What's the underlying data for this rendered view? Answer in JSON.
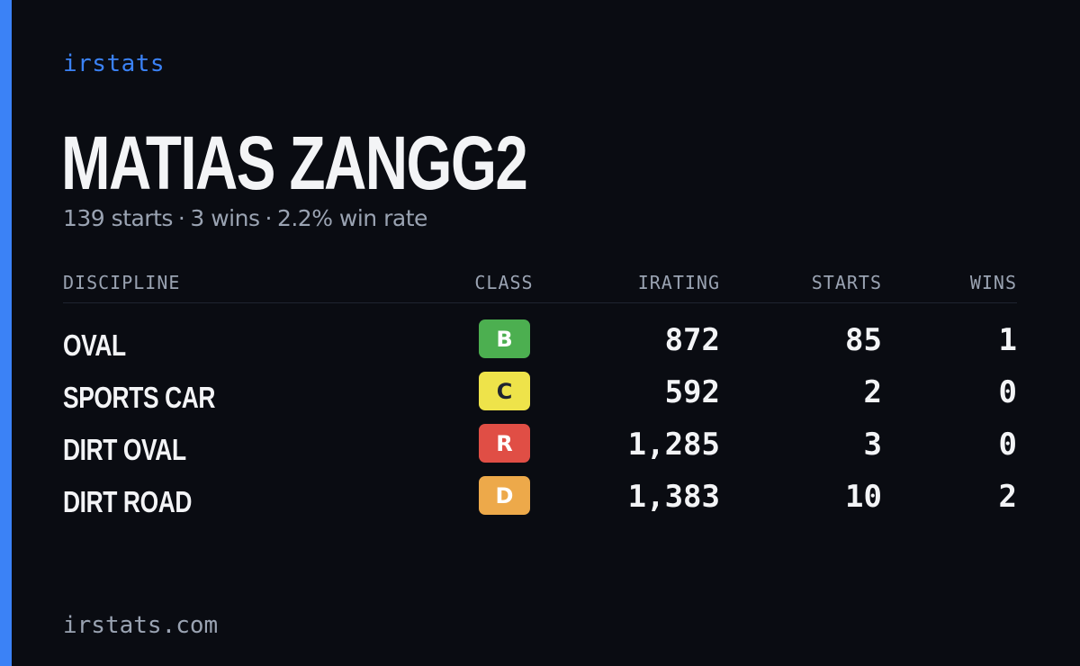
{
  "brand": "irstats",
  "player": {
    "name": "MATIAS ZANGG2",
    "starts_text": "139 starts",
    "wins_text": "3 wins",
    "win_rate_text": "2.2% win rate",
    "separator": "·"
  },
  "table": {
    "headers": {
      "discipline": "DISCIPLINE",
      "class": "CLASS",
      "irating": "IRATING",
      "starts": "STARTS",
      "wins": "WINS"
    },
    "rows": [
      {
        "discipline": "OVAL",
        "class": "B",
        "class_color": "#4caf50",
        "class_text_color": "#ffffff",
        "irating": "872",
        "starts": "85",
        "wins": "1"
      },
      {
        "discipline": "SPORTS CAR",
        "class": "C",
        "class_color": "#eee34a",
        "class_text_color": "#1f2430",
        "irating": "592",
        "starts": "2",
        "wins": "0"
      },
      {
        "discipline": "DIRT OVAL",
        "class": "R",
        "class_color": "#e04e45",
        "class_text_color": "#ffffff",
        "irating": "1,285",
        "starts": "3",
        "wins": "0"
      },
      {
        "discipline": "DIRT ROAD",
        "class": "D",
        "class_color": "#eda94a",
        "class_text_color": "#ffffff",
        "irating": "1,383",
        "starts": "10",
        "wins": "2"
      }
    ]
  },
  "footer": "irstats.com",
  "colors": {
    "accent": "#3b82f6",
    "background": "#0a0c12",
    "muted": "#9aa3b2",
    "text": "#f3f4f6"
  }
}
